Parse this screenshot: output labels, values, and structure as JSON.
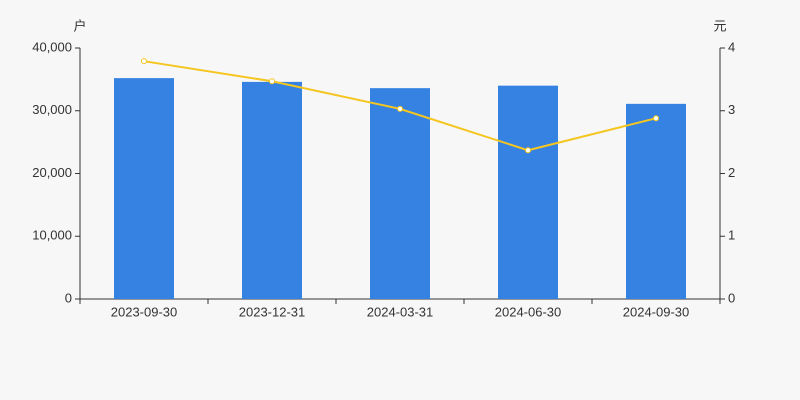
{
  "chart_data": {
    "type": "bar",
    "y_label": "户",
    "y2_label": "元",
    "categories": [
      "2023-09-30",
      "2023-12-31",
      "2024-03-31",
      "2024-06-30",
      "2024-09-30"
    ],
    "series": [
      {
        "color": "#3582e2",
        "values": [
          35200,
          34600,
          33600,
          34000,
          31100
        ]
      },
      {
        "color": "#f5c520",
        "type": "line",
        "axis": "y2",
        "values": [
          3.79,
          3.47,
          3.03,
          2.37,
          2.88
        ]
      }
    ],
    "ylim": [
      0,
      40000
    ],
    "yticks": [
      0,
      {
        "value": 10000,
        "label": "10,000"
      },
      {
        "value": 20000,
        "label": "20,000"
      },
      {
        "value": 30000,
        "label": "30,000"
      },
      {
        "value": 40000,
        "label": "40,000"
      }
    ],
    "y2lim": [
      0,
      4
    ],
    "y2ticks": [
      0,
      1,
      2,
      3,
      4
    ],
    "grid": false
  }
}
